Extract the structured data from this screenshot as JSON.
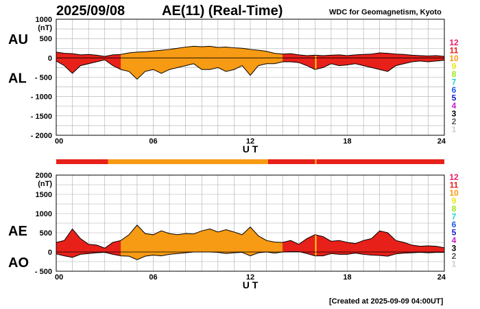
{
  "header": {
    "date": "2025/09/08",
    "title": "AE(11) (Real-Time)",
    "source": "WDC for Geomagnetism, Kyoto",
    "created": "[Created at 2025-09-09 04:00UT]"
  },
  "colors": {
    "red": "#ee3322",
    "orange": "#ff9e10",
    "yellow": "#ffd21a",
    "grid": "#aaaaaa",
    "outline": "#000000"
  },
  "legend": {
    "levels": [
      "12",
      "11",
      "10",
      "9",
      "8",
      "7",
      "6",
      "5",
      "4",
      "3",
      "2",
      "1"
    ],
    "colors": [
      "#e8206e",
      "#e8201a",
      "#f79a14",
      "#e8e814",
      "#9ee614",
      "#18d6c8",
      "#1858e6",
      "#1818c8",
      "#c818c8",
      "#000000",
      "#555555",
      "#cccccc"
    ]
  },
  "activity_bar": [
    {
      "start": 0,
      "end": 3.2,
      "level": "11"
    },
    {
      "start": 3.2,
      "end": 13.1,
      "level": "10"
    },
    {
      "start": 13.1,
      "end": 16.0,
      "level": "11"
    },
    {
      "start": 16.0,
      "end": 16.1,
      "level": "10"
    },
    {
      "start": 16.1,
      "end": 24,
      "level": "11"
    }
  ],
  "chart_data": [
    {
      "type": "area",
      "panel": "AU/AL",
      "series_labels": [
        "AU",
        "AL"
      ],
      "unit_label": "(nT)",
      "xlabel": "U T",
      "xlim": [
        0,
        24
      ],
      "ylim": [
        -2000,
        1000
      ],
      "yticks": [
        1000,
        500,
        0,
        -500,
        -1000,
        -1500,
        -2000
      ],
      "ytick_labels": [
        "1000",
        "500",
        "0",
        "- 500",
        "- 1000",
        "- 1500",
        "- 2000"
      ],
      "xticks": [
        0,
        6,
        12,
        18,
        24
      ],
      "xtick_labels": [
        "00",
        "06",
        "12",
        "18",
        "24"
      ],
      "grid": true,
      "x": [
        0,
        0.5,
        1,
        1.5,
        2,
        2.5,
        3,
        3.5,
        4,
        4.5,
        5,
        5.5,
        6,
        6.5,
        7,
        7.5,
        8,
        8.5,
        9,
        9.5,
        10,
        10.5,
        11,
        11.5,
        12,
        12.5,
        13,
        13.5,
        14,
        14.5,
        15,
        15.5,
        16,
        16.5,
        17,
        17.5,
        18,
        18.5,
        19,
        19.5,
        20,
        20.5,
        21,
        21.5,
        22,
        22.5,
        23,
        23.5,
        24
      ],
      "upper": [
        150,
        120,
        110,
        80,
        90,
        70,
        40,
        80,
        90,
        130,
        150,
        160,
        180,
        200,
        220,
        250,
        280,
        300,
        290,
        300,
        270,
        280,
        260,
        250,
        220,
        200,
        170,
        120,
        100,
        110,
        80,
        60,
        70,
        60,
        70,
        80,
        60,
        80,
        90,
        100,
        130,
        120,
        100,
        90,
        70,
        60,
        50,
        60,
        40
      ],
      "lower": [
        -80,
        -200,
        -400,
        -200,
        -150,
        -100,
        -50,
        -200,
        -300,
        -350,
        -550,
        -350,
        -300,
        -400,
        -300,
        -250,
        -200,
        -150,
        -300,
        -300,
        -250,
        -350,
        -300,
        -200,
        -450,
        -200,
        -150,
        -150,
        -100,
        -100,
        -120,
        -200,
        -300,
        -250,
        -150,
        -200,
        -180,
        -150,
        -200,
        -250,
        -300,
        -350,
        -200,
        -150,
        -100,
        -80,
        -100,
        -80,
        -60
      ],
      "level_by_hour": [
        "11",
        "11",
        "11",
        "11",
        "10",
        "10",
        "10",
        "10",
        "10",
        "10",
        "10",
        "10",
        "10",
        "10",
        "11",
        "11",
        "11",
        "11",
        "11",
        "11",
        "11",
        "11",
        "11",
        "11"
      ]
    },
    {
      "type": "area",
      "panel": "AE/AO",
      "series_labels": [
        "AE",
        "AO"
      ],
      "unit_label": "(nT)",
      "xlabel": "U T",
      "xlim": [
        0,
        24
      ],
      "ylim": [
        -500,
        2000
      ],
      "yticks": [
        2000,
        1500,
        1000,
        500,
        0,
        -500
      ],
      "ytick_labels": [
        "2000",
        "1500",
        "1000",
        "500",
        "0",
        "- 500"
      ],
      "xticks": [
        0,
        6,
        12,
        18,
        24
      ],
      "xtick_labels": [
        "00",
        "06",
        "12",
        "18",
        "24"
      ],
      "grid": true,
      "x": [
        0,
        0.5,
        1,
        1.5,
        2,
        2.5,
        3,
        3.5,
        4,
        4.5,
        5,
        5.5,
        6,
        6.5,
        7,
        7.5,
        8,
        8.5,
        9,
        9.5,
        10,
        10.5,
        11,
        11.5,
        12,
        12.5,
        13,
        13.5,
        14,
        14.5,
        15,
        15.5,
        16,
        16.5,
        17,
        17.5,
        18,
        18.5,
        19,
        19.5,
        20,
        20.5,
        21,
        21.5,
        22,
        22.5,
        23,
        23.5,
        24
      ],
      "upper": [
        250,
        300,
        600,
        350,
        200,
        180,
        100,
        250,
        300,
        450,
        700,
        480,
        450,
        550,
        480,
        450,
        480,
        470,
        550,
        600,
        520,
        580,
        520,
        450,
        650,
        420,
        300,
        260,
        250,
        300,
        200,
        350,
        450,
        400,
        280,
        300,
        250,
        220,
        300,
        350,
        550,
        500,
        300,
        250,
        180,
        150,
        160,
        150,
        110
      ],
      "lower": [
        -50,
        -100,
        -140,
        -60,
        -40,
        -20,
        -10,
        -60,
        -100,
        -110,
        -200,
        -110,
        -80,
        -100,
        -60,
        -40,
        -20,
        0,
        0,
        0,
        -10,
        -40,
        -20,
        -10,
        -100,
        -20,
        0,
        -30,
        0,
        10,
        10,
        -40,
        -100,
        -100,
        -40,
        -60,
        -60,
        -30,
        -60,
        -80,
        -90,
        -110,
        -50,
        -30,
        -20,
        -10,
        -20,
        -10,
        -10
      ],
      "level_by_hour": [
        "11",
        "11",
        "11",
        "11",
        "10",
        "10",
        "10",
        "10",
        "10",
        "10",
        "10",
        "10",
        "10",
        "10",
        "11",
        "11",
        "11",
        "11",
        "11",
        "11",
        "11",
        "11",
        "11",
        "11"
      ]
    }
  ]
}
